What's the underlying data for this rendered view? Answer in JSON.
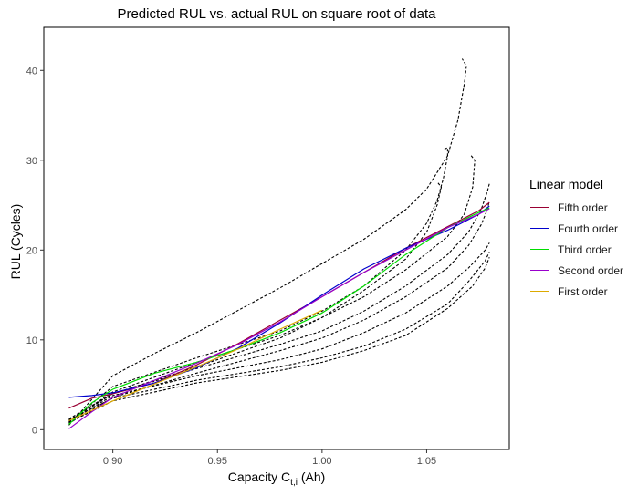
{
  "chart_data": {
    "type": "line",
    "title": "Predicted RUL vs. actual RUL on square root of data",
    "xlabel": {
      "main": "Capacity C",
      "sub": "t,i",
      "unit": " (Ah)"
    },
    "ylabel": "RUL (Cycles)",
    "xlim": [
      0.867,
      1.0895
    ],
    "ylim": [
      -2.2,
      44.8
    ],
    "x_ticks": [
      0.9,
      0.95,
      1.0,
      1.05
    ],
    "x_tick_labels": [
      "0.90",
      "0.95",
      "1.00",
      "1.05"
    ],
    "y_ticks": [
      0,
      10,
      20,
      30,
      40
    ],
    "y_tick_labels": [
      "0",
      "10",
      "20",
      "30",
      "40"
    ],
    "grid": false,
    "legend": {
      "title": "Linear model",
      "placement": "right"
    },
    "series": [
      {
        "name": "Fifth order",
        "color": "#990033",
        "style": "solid",
        "x": [
          0.879,
          0.89,
          0.9,
          0.92,
          0.94,
          0.96,
          0.98,
          1.0,
          1.02,
          1.04,
          1.06,
          1.075,
          1.08
        ],
        "y": [
          2.4,
          3.5,
          4.0,
          5.2,
          7.2,
          9.6,
          12.2,
          14.8,
          17.5,
          20.2,
          22.6,
          24.4,
          25.3
        ]
      },
      {
        "name": "Fourth order",
        "color": "#0000cc",
        "style": "solid",
        "x": [
          0.879,
          0.89,
          0.9,
          0.92,
          0.94,
          0.96,
          0.98,
          1.0,
          1.02,
          1.04,
          1.06,
          1.075,
          1.08
        ],
        "y": [
          3.6,
          3.8,
          4.1,
          5.2,
          6.9,
          9.1,
          11.9,
          15.0,
          17.9,
          20.2,
          22.2,
          24.0,
          24.9
        ]
      },
      {
        "name": "Third order",
        "color": "#00dd00",
        "style": "solid",
        "x": [
          0.879,
          0.89,
          0.9,
          0.92,
          0.94,
          0.96,
          0.98,
          1.0,
          1.02,
          1.04,
          1.06,
          1.075,
          1.08
        ],
        "y": [
          0.6,
          3.0,
          4.5,
          6.3,
          7.5,
          9.0,
          10.8,
          13.0,
          16.0,
          19.5,
          22.5,
          24.2,
          24.7
        ]
      },
      {
        "name": "Second order",
        "color": "#9900cc",
        "style": "solid",
        "x": [
          0.879,
          0.89,
          0.9,
          0.92,
          0.94,
          0.96,
          0.98,
          1.0,
          1.02,
          1.04,
          1.06,
          1.075,
          1.08
        ],
        "y": [
          0.1,
          2.0,
          3.6,
          5.5,
          7.4,
          9.5,
          12.0,
          14.8,
          17.5,
          20.0,
          22.5,
          24.0,
          24.6
        ]
      },
      {
        "name": "First order",
        "color": "#ddaa00",
        "style": "solid",
        "x": [
          0.879,
          0.9,
          0.92,
          0.94,
          0.96,
          0.98,
          1.0
        ],
        "y": [
          1.0,
          3.2,
          5.1,
          7.0,
          9.0,
          11.2,
          13.3
        ]
      },
      {
        "name": "",
        "color": "#000000",
        "style": "dashed",
        "x": [
          0.879,
          0.9,
          0.92,
          0.94,
          0.96,
          0.98,
          1.0,
          1.02,
          1.04,
          1.05,
          1.06,
          1.065,
          1.068,
          1.069,
          1.067
        ],
        "y": [
          0.5,
          6.0,
          8.5,
          10.8,
          13.3,
          15.8,
          18.5,
          21.2,
          24.5,
          26.8,
          30.5,
          34.5,
          38.5,
          40.5,
          41.3
        ]
      },
      {
        "name": "",
        "color": "#000000",
        "style": "dashed",
        "x": [
          0.879,
          0.9,
          0.94,
          0.98,
          1.0,
          1.02,
          1.04,
          1.05,
          1.055,
          1.058,
          1.06,
          1.06,
          1.058
        ],
        "y": [
          0.8,
          4.8,
          8.0,
          11.0,
          13.2,
          16.0,
          20.0,
          23.0,
          25.5,
          28.0,
          30.5,
          31.4,
          31.2
        ]
      },
      {
        "name": "",
        "color": "#000000",
        "style": "dashed",
        "x": [
          0.879,
          0.9,
          0.94,
          0.98,
          1.0,
          1.02,
          1.04,
          1.06,
          1.068,
          1.072,
          1.073,
          1.071
        ],
        "y": [
          1.0,
          4.2,
          7.5,
          10.5,
          12.5,
          14.8,
          17.8,
          21.5,
          24.0,
          27.0,
          30.0,
          30.6
        ]
      },
      {
        "name": "",
        "color": "#000000",
        "style": "dashed",
        "x": [
          0.879,
          0.9,
          0.94,
          0.98,
          1.0,
          1.02,
          1.04,
          1.05,
          1.055,
          1.057,
          1.055
        ],
        "y": [
          1.0,
          4.0,
          7.0,
          10.2,
          12.5,
          15.5,
          19.0,
          22.0,
          25.0,
          27.0,
          27.6
        ]
      },
      {
        "name": "",
        "color": "#000000",
        "style": "dashed",
        "x": [
          0.879,
          0.9,
          0.94,
          0.98,
          1.0,
          1.02,
          1.04,
          1.06,
          1.07,
          1.076,
          1.079,
          1.08
        ],
        "y": [
          1.2,
          4.0,
          6.8,
          9.5,
          11.0,
          13.2,
          16.0,
          19.5,
          22.0,
          24.5,
          26.5,
          27.4
        ]
      },
      {
        "name": "",
        "color": "#000000",
        "style": "dashed",
        "x": [
          0.879,
          0.9,
          0.94,
          0.98,
          1.0,
          1.02,
          1.04,
          1.06,
          1.07,
          1.076,
          1.079,
          1.08
        ],
        "y": [
          0.7,
          3.6,
          6.3,
          8.8,
          10.2,
          12.2,
          14.8,
          18.0,
          20.5,
          22.8,
          24.5,
          25.5
        ]
      },
      {
        "name": "",
        "color": "#000000",
        "style": "dashed",
        "x": [
          0.879,
          0.9,
          0.94,
          0.98,
          1.0,
          1.02,
          1.04,
          1.06,
          1.07,
          1.078,
          1.08
        ],
        "y": [
          0.9,
          3.8,
          6.0,
          7.8,
          9.0,
          10.8,
          13.0,
          16.0,
          18.0,
          20.0,
          20.8
        ]
      },
      {
        "name": "",
        "color": "#000000",
        "style": "dashed",
        "x": [
          0.879,
          0.9,
          0.94,
          0.98,
          1.0,
          1.02,
          1.04,
          1.06,
          1.07,
          1.078,
          1.08
        ],
        "y": [
          1.1,
          3.5,
          5.5,
          7.0,
          8.0,
          9.3,
          11.2,
          14.0,
          16.5,
          18.8,
          19.8
        ]
      },
      {
        "name": "",
        "color": "#000000",
        "style": "dashed",
        "x": [
          0.879,
          0.9,
          0.94,
          0.98,
          1.0,
          1.02,
          1.04,
          1.06,
          1.072,
          1.078,
          1.08
        ],
        "y": [
          0.8,
          3.2,
          5.2,
          6.6,
          7.5,
          8.8,
          10.5,
          13.5,
          16.0,
          18.0,
          19.2
        ]
      }
    ]
  }
}
